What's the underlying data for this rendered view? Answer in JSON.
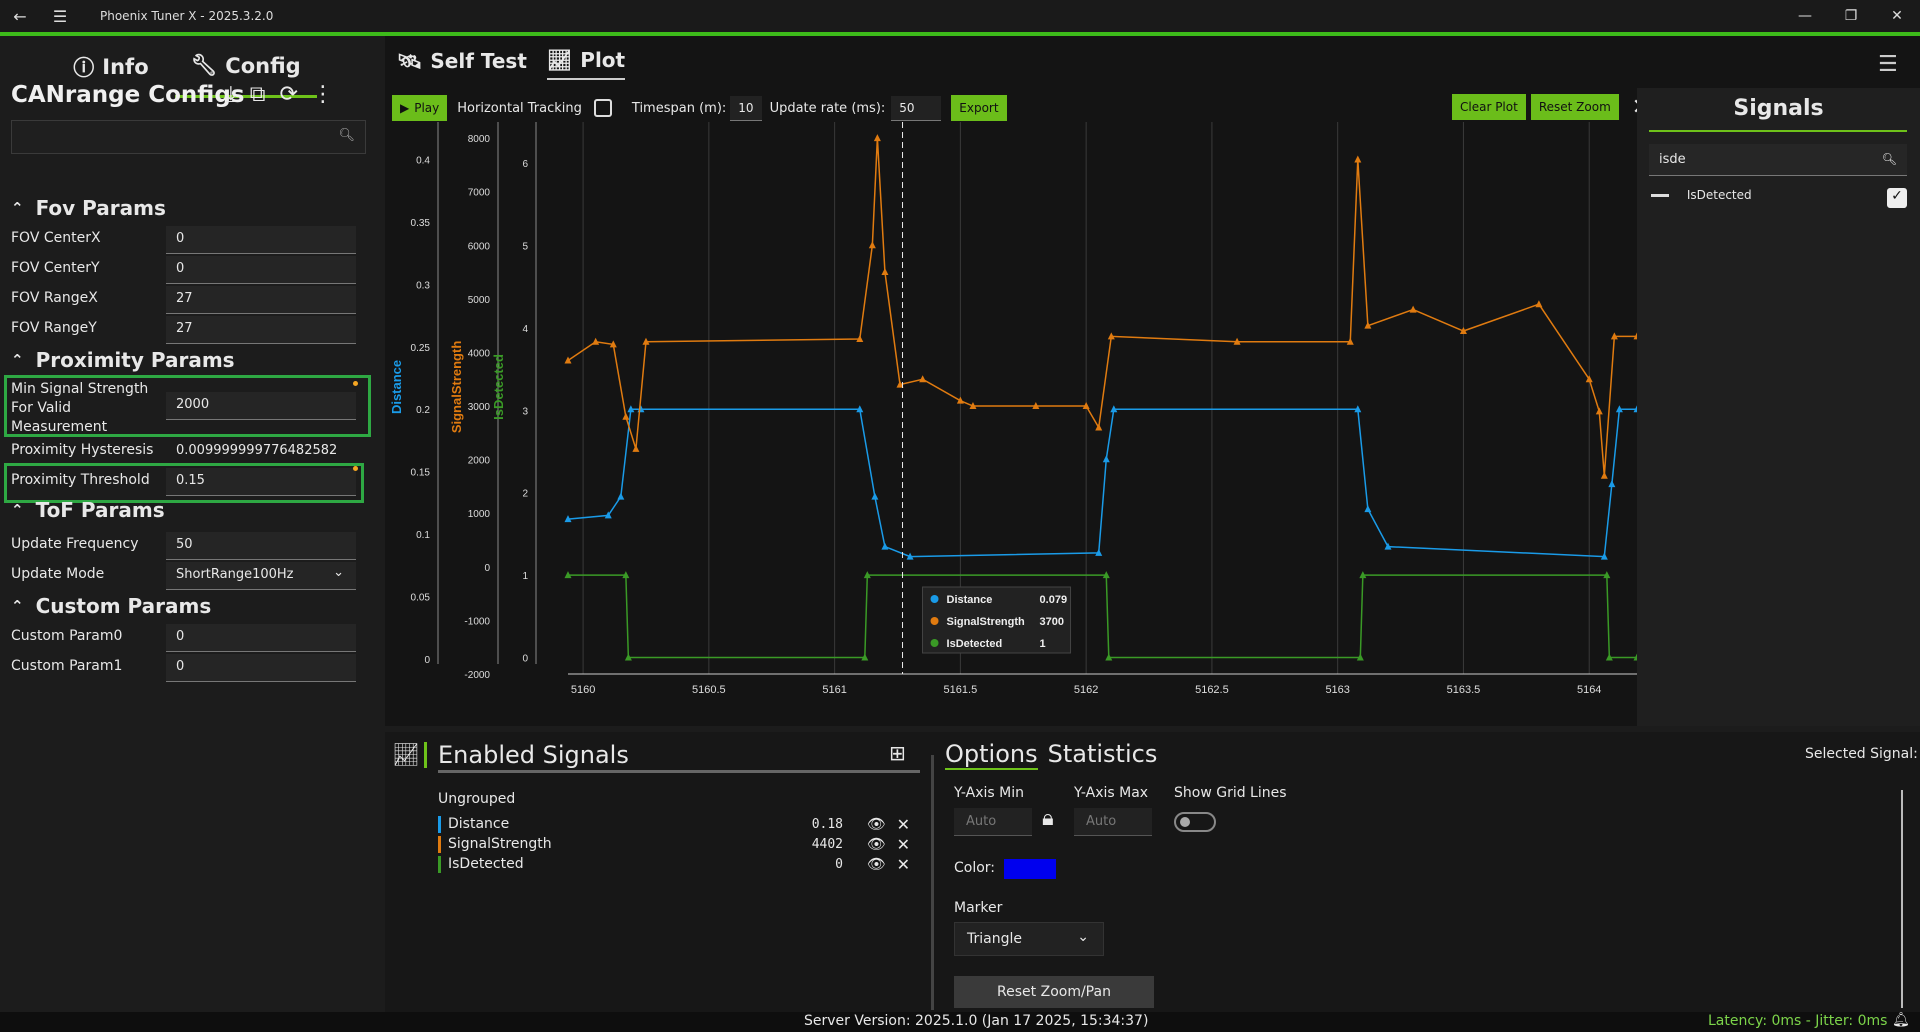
{
  "window": {
    "title": "Phoenix Tuner X - 2025.3.2.0"
  },
  "left": {
    "tabs": [
      {
        "label": "Info"
      },
      {
        "label": "Config"
      }
    ],
    "config_title": "CANrange Configs",
    "sections": {
      "fov": "Fov Params",
      "proximity": "Proximity Params",
      "tof": "ToF Params",
      "custom": "Custom Params"
    },
    "params": {
      "fov_centerx": {
        "label": "FOV CenterX",
        "value": "0"
      },
      "fov_centery": {
        "label": "FOV CenterY",
        "value": "0"
      },
      "fov_rangex": {
        "label": "FOV RangeX",
        "value": "27"
      },
      "fov_rangey": {
        "label": "FOV RangeY",
        "value": "27"
      },
      "min_signal": {
        "label1": "Min Signal Strength",
        "label2": "For Valid",
        "label3": "Measurement",
        "value": "2000"
      },
      "prox_hyst": {
        "label": "Proximity Hysteresis",
        "value": "0.009999999776482582"
      },
      "prox_thresh": {
        "label": "Proximity Threshold",
        "value": "0.15"
      },
      "update_freq": {
        "label": "Update Frequency",
        "value": "50"
      },
      "update_mode": {
        "label": "Update Mode",
        "value": "ShortRange100Hz"
      },
      "custom0": {
        "label": "Custom Param0",
        "value": "0"
      },
      "custom1": {
        "label": "Custom Param1",
        "value": "0"
      }
    }
  },
  "main": {
    "tabs": [
      {
        "label": "Self Test"
      },
      {
        "label": "Plot"
      }
    ],
    "toolbar": {
      "play": "Play",
      "horizontal_tracking": "Horizontal Tracking",
      "timespan_label": "Timespan (m):",
      "timespan": "10",
      "update_rate_label": "Update rate (ms):",
      "update_rate": "50",
      "export": "Export",
      "clear_plot": "Clear Plot",
      "reset_zoom": "Reset Zoom"
    }
  },
  "chart_data": {
    "type": "line",
    "x_ticks": [
      "5160",
      "5160.5",
      "5161",
      "5161.5",
      "5162",
      "5162.5",
      "5163",
      "5163.5",
      "5164"
    ],
    "xlim": [
      5159.94,
      5164.19
    ],
    "axes": [
      {
        "name": "Distance",
        "color": "#1a9be8",
        "ticks": [
          "0.4",
          "0.35",
          "0.3",
          "0.25",
          "0.2",
          "0.15",
          "0.1",
          "0.05",
          "0"
        ],
        "ylim": [
          -0.012,
          0.43
        ]
      },
      {
        "name": "SignalStrength",
        "color": "#e07b10",
        "ticks": [
          "8000",
          "7000",
          "6000",
          "5000",
          "4000",
          "3000",
          "2000",
          "1000",
          "0",
          "-1000",
          "-2000"
        ],
        "ylim": [
          -2000,
          8300
        ]
      },
      {
        "name": "IsDetected",
        "color": "#3a9a26",
        "ticks": [
          "6",
          "5",
          "4",
          "3",
          "2",
          "1",
          "0"
        ],
        "ylim": [
          -0.2,
          6.5
        ]
      }
    ],
    "series": [
      {
        "name": "Distance",
        "color": "#1a9be8",
        "points": [
          [
            5159.94,
            0.112
          ],
          [
            5160.1,
            0.115
          ],
          [
            5160.15,
            0.13
          ],
          [
            5160.19,
            0.2
          ],
          [
            5160.23,
            0.2
          ],
          [
            5161.1,
            0.2
          ],
          [
            5161.16,
            0.13
          ],
          [
            5161.2,
            0.09
          ],
          [
            5161.3,
            0.082
          ],
          [
            5162.05,
            0.085
          ],
          [
            5162.08,
            0.16
          ],
          [
            5162.11,
            0.2
          ],
          [
            5163.08,
            0.2
          ],
          [
            5163.12,
            0.12
          ],
          [
            5163.2,
            0.09
          ],
          [
            5164.06,
            0.082
          ],
          [
            5164.09,
            0.14
          ],
          [
            5164.12,
            0.2
          ],
          [
            5164.19,
            0.2
          ]
        ]
      },
      {
        "name": "SignalStrength",
        "color": "#e07b10",
        "points": [
          [
            5159.94,
            3850
          ],
          [
            5160.05,
            4200
          ],
          [
            5160.12,
            4150
          ],
          [
            5160.17,
            2800
          ],
          [
            5160.21,
            2200
          ],
          [
            5160.25,
            4200
          ],
          [
            5161.1,
            4250
          ],
          [
            5161.15,
            6000
          ],
          [
            5161.17,
            8000
          ],
          [
            5161.2,
            5500
          ],
          [
            5161.26,
            3400
          ],
          [
            5161.35,
            3500
          ],
          [
            5161.5,
            3100
          ],
          [
            5161.55,
            3000
          ],
          [
            5161.8,
            3000
          ],
          [
            5162.0,
            3000
          ],
          [
            5162.05,
            2600
          ],
          [
            5162.1,
            4300
          ],
          [
            5162.6,
            4200
          ],
          [
            5163.05,
            4200
          ],
          [
            5163.08,
            7600
          ],
          [
            5163.12,
            4500
          ],
          [
            5163.3,
            4800
          ],
          [
            5163.5,
            4400
          ],
          [
            5163.8,
            4900
          ],
          [
            5164.0,
            3500
          ],
          [
            5164.04,
            2900
          ],
          [
            5164.06,
            1700
          ],
          [
            5164.1,
            4300
          ],
          [
            5164.19,
            4300
          ]
        ]
      },
      {
        "name": "IsDetected",
        "color": "#3a9a26",
        "points": [
          [
            5159.94,
            1
          ],
          [
            5160.17,
            1
          ],
          [
            5160.18,
            0
          ],
          [
            5161.12,
            0
          ],
          [
            5161.13,
            1
          ],
          [
            5162.08,
            1
          ],
          [
            5162.09,
            0
          ],
          [
            5163.09,
            0
          ],
          [
            5163.1,
            1
          ],
          [
            5164.07,
            1
          ],
          [
            5164.08,
            0
          ],
          [
            5164.19,
            0
          ]
        ]
      }
    ],
    "tooltip": {
      "rows": [
        {
          "name": "Distance",
          "value": "0.079"
        },
        {
          "name": "SignalStrength",
          "value": "3700"
        },
        {
          "name": "IsDetected",
          "value": "1"
        }
      ]
    }
  },
  "signals_panel": {
    "title": "Signals",
    "search": "isde",
    "item": "IsDetected"
  },
  "enabled_signals": {
    "title": "Enabled Signals",
    "group": "Ungrouped",
    "items": [
      {
        "name": "Distance",
        "value": "0.18",
        "color": "#1a9be8"
      },
      {
        "name": "SignalStrength",
        "value": "4402",
        "color": "#e07b10"
      },
      {
        "name": "IsDetected",
        "value": "0",
        "color": "#3a9a26"
      }
    ]
  },
  "options": {
    "tab_options": "Options",
    "tab_statistics": "Statistics",
    "selected_signal": "Selected Signal:",
    "ymin_label": "Y-Axis Min",
    "ymax_label": "Y-Axis Max",
    "ymin_placeholder": "Auto",
    "ymax_placeholder": "Auto",
    "grid_label": "Show Grid Lines",
    "color_label": "Color:",
    "marker_label": "Marker",
    "marker_value": "Triangle",
    "reset_button": "Reset Zoom/Pan",
    "color": "#0000ee"
  },
  "status": {
    "server": "Server Version:  2025.1.0 (Jan 17 2025, 15:34:37)",
    "latency": "Latency: 0ms - Jitter: 0ms"
  }
}
